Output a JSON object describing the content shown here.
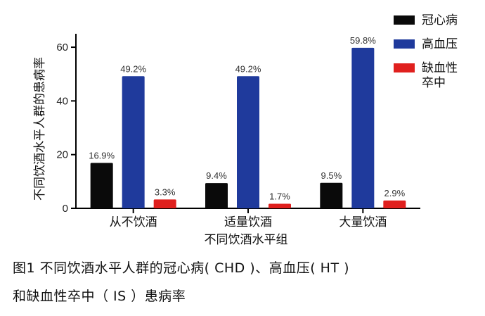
{
  "chart_data": {
    "type": "bar",
    "categories": [
      "从不饮酒",
      "适量饮酒",
      "大量饮酒"
    ],
    "series": [
      {
        "name": "冠心病",
        "values": [
          16.9,
          9.4,
          9.5
        ],
        "labels": [
          "16.9%",
          "9.4%",
          "9.5%"
        ],
        "color": "#0a0a0a"
      },
      {
        "name": "高血压",
        "values": [
          49.2,
          49.2,
          59.8
        ],
        "labels": [
          "49.2%",
          "49.2%",
          "59.8%"
        ],
        "color": "#1f3a9c"
      },
      {
        "name": "缺血性卒中",
        "legend_lines": [
          "缺血性",
          "卒中"
        ],
        "values": [
          3.3,
          1.7,
          2.9
        ],
        "labels": [
          "3.3%",
          "1.7%",
          "2.9%"
        ],
        "color": "#e0201e"
      }
    ],
    "xlabel": "不同饮酒水平组",
    "ylabel": "不同饮酒水平人群的患病率",
    "ylim": [
      0,
      65
    ],
    "yticks": [
      0,
      20,
      40,
      60
    ],
    "grid": false,
    "legend": "top-right"
  },
  "caption": {
    "line1": "图1 不同饮酒水平人群的冠心病( CHD )、高血压( HT )",
    "line2": "和缺血性卒中（ IS ）患病率"
  }
}
